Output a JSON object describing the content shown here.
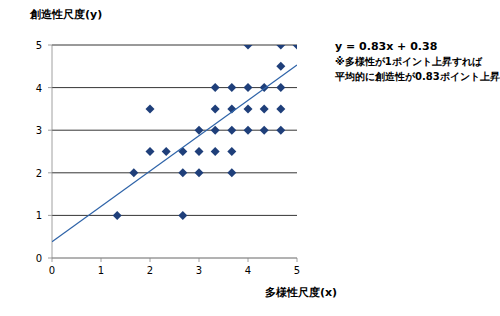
{
  "chart_data": {
    "type": "scatter",
    "x_label": "多様性尺度(x)",
    "y_label": "創造性尺度(y)",
    "annotations": [
      "y = 0.83x + 0.38",
      "※多様性が1ポイント上昇すれば",
      "平均的に創造性が0.83ポイント上昇"
    ],
    "xlim": [
      0,
      5
    ],
    "ylim": [
      0,
      5
    ],
    "xticks": [
      0,
      1,
      2,
      3,
      4,
      5
    ],
    "yticks": [
      0,
      1,
      2,
      3,
      4,
      5
    ],
    "grid": true,
    "series": [
      {
        "type": "scatter",
        "marker": "diamond",
        "color": "#1f3f7a",
        "x": [
          4,
          4.67,
          5,
          4.67,
          3.33,
          3.67,
          4,
          4.33,
          4.67,
          3.33,
          3.67,
          4,
          4.33,
          4.67,
          3,
          3.33,
          3.67,
          4,
          4.33,
          4.67,
          2,
          2.33,
          2.67,
          3,
          3.33,
          3.67,
          2,
          1.67,
          2.67,
          3,
          3.67,
          1.33,
          2.67
        ],
        "values": [
          5,
          5,
          5,
          4.5,
          4,
          4,
          4,
          4,
          4,
          3.5,
          3.5,
          3.5,
          3.5,
          3.5,
          3,
          3,
          3,
          3,
          3,
          3,
          2.5,
          2.5,
          2.5,
          2.5,
          2.5,
          2.5,
          3.5,
          2,
          2,
          2,
          2,
          1,
          1
        ]
      },
      {
        "type": "line",
        "line_style": "solid",
        "color": "#2e63a8",
        "x": [
          0,
          5
        ],
        "values": [
          0.38,
          4.53
        ]
      }
    ]
  }
}
